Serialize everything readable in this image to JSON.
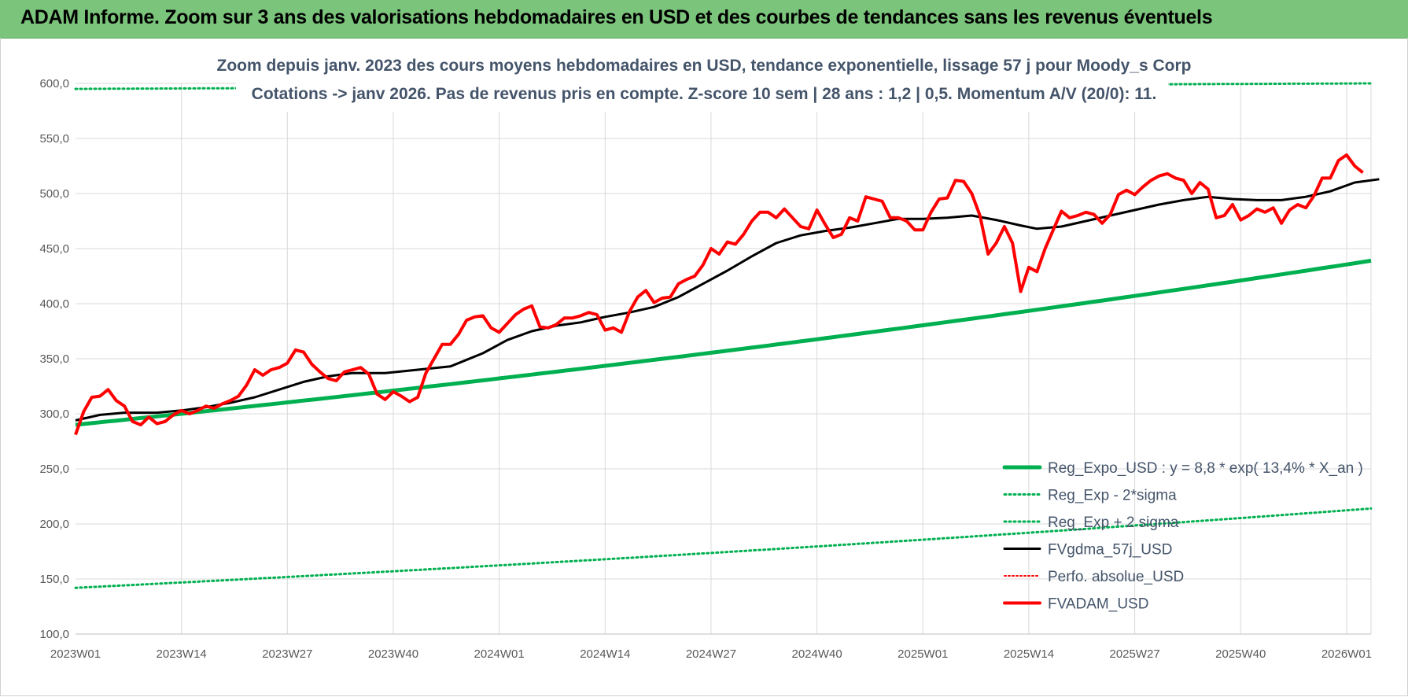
{
  "banner": {
    "title": "ADAM Informe. Zoom sur 3 ans des valorisations hebdomadaires en USD et des courbes de tendances sans les revenus éventuels"
  },
  "colors": {
    "banner": "#7bc47b",
    "reg_expo": "#00b050",
    "sigma": "#00b050",
    "fvgdma": "#000000",
    "perfo": "#ff0000",
    "fvadam": "#ff0000",
    "grid": "#d9d9d9",
    "text": "#44546a"
  },
  "chart_data": {
    "type": "line",
    "title_line1": "Zoom depuis janv. 2023 des cours moyens hebdomadaires en USD, tendance exponentielle, lissage 57 j pour Moody_s Corp",
    "title_line2": "Cotations -> janv 2026. Pas de revenus pris en compte. Z-score 10 sem | 28 ans : 1,2 | 0,5. Momentum A/V (20/0): 11.",
    "xlabel": "",
    "ylabel": "",
    "ylim": [
      100,
      600
    ],
    "yticks": [
      "100,0",
      "150,0",
      "200,0",
      "250,0",
      "300,0",
      "350,0",
      "400,0",
      "450,0",
      "500,0",
      "550,0",
      "600,0"
    ],
    "x_count": 160,
    "x_tick_labels": [
      "2023W01",
      "2023W14",
      "2023W27",
      "2023W40",
      "2024W01",
      "2024W14",
      "2024W27",
      "2024W40",
      "2025W01",
      "2025W14",
      "2025W27",
      "2025W40",
      "2026W01"
    ],
    "x_tick_index": [
      0,
      13,
      26,
      39,
      52,
      65,
      78,
      91,
      104,
      117,
      130,
      143,
      156
    ],
    "grid": true,
    "legend_position": "bottom-right",
    "series": [
      {
        "name": "Reg_Expo_USD : y = 8,8 * exp( 13,4% *  X_an )",
        "style": "solid-thick",
        "color": "#00b050",
        "start": 290,
        "end": 439
      },
      {
        "name": "Reg_Exp - 2*sigma",
        "style": "dotted",
        "color": "#00b050",
        "start": 142,
        "end": 214
      },
      {
        "name": "Reg_Exp + 2 sigma",
        "style": "dotted",
        "color": "#00b050",
        "start": 595,
        "end": 600,
        "note": "clipped at top of axis"
      },
      {
        "name": "FVgdma_57j_USD",
        "style": "solid",
        "color": "#000000",
        "points": [
          [
            0,
            294
          ],
          [
            3,
            299
          ],
          [
            6,
            301
          ],
          [
            10,
            301
          ],
          [
            13,
            303
          ],
          [
            16,
            306
          ],
          [
            19,
            310
          ],
          [
            22,
            315
          ],
          [
            25,
            322
          ],
          [
            28,
            329
          ],
          [
            31,
            334
          ],
          [
            34,
            337
          ],
          [
            38,
            337
          ],
          [
            42,
            340
          ],
          [
            46,
            343
          ],
          [
            50,
            355
          ],
          [
            53,
            367
          ],
          [
            56,
            375
          ],
          [
            59,
            380
          ],
          [
            62,
            383
          ],
          [
            65,
            388
          ],
          [
            68,
            392
          ],
          [
            71,
            397
          ],
          [
            74,
            406
          ],
          [
            77,
            418
          ],
          [
            80,
            430
          ],
          [
            83,
            443
          ],
          [
            86,
            455
          ],
          [
            89,
            462
          ],
          [
            92,
            466
          ],
          [
            95,
            469
          ],
          [
            98,
            473
          ],
          [
            101,
            477
          ],
          [
            104,
            477
          ],
          [
            107,
            478
          ],
          [
            110,
            480
          ],
          [
            113,
            476
          ],
          [
            116,
            471
          ],
          [
            118,
            468
          ],
          [
            121,
            470
          ],
          [
            124,
            475
          ],
          [
            127,
            480
          ],
          [
            130,
            485
          ],
          [
            133,
            490
          ],
          [
            136,
            494
          ],
          [
            139,
            497
          ],
          [
            142,
            495
          ],
          [
            145,
            494
          ],
          [
            148,
            494
          ],
          [
            151,
            497
          ],
          [
            154,
            502
          ],
          [
            157,
            510
          ],
          [
            160,
            513
          ]
        ]
      },
      {
        "name": "Perfo. absolue_USD",
        "style": "dotted",
        "color": "#ff0000",
        "points": []
      },
      {
        "name": "FVADAM_USD",
        "style": "solid-thick",
        "color": "#ff0000",
        "points": [
          [
            0,
            281
          ],
          [
            1,
            302
          ],
          [
            2,
            315
          ],
          [
            3,
            316
          ],
          [
            4,
            322
          ],
          [
            5,
            312
          ],
          [
            6,
            307
          ],
          [
            7,
            293
          ],
          [
            8,
            290
          ],
          [
            9,
            297
          ],
          [
            10,
            291
          ],
          [
            11,
            293
          ],
          [
            12,
            299
          ],
          [
            13,
            303
          ],
          [
            14,
            300
          ],
          [
            15,
            303
          ],
          [
            16,
            307
          ],
          [
            17,
            305
          ],
          [
            18,
            309
          ],
          [
            19,
            312
          ],
          [
            20,
            316
          ],
          [
            21,
            326
          ],
          [
            22,
            340
          ],
          [
            23,
            335
          ],
          [
            24,
            340
          ],
          [
            25,
            342
          ],
          [
            26,
            346
          ],
          [
            27,
            358
          ],
          [
            28,
            356
          ],
          [
            29,
            345
          ],
          [
            30,
            338
          ],
          [
            31,
            332
          ],
          [
            32,
            330
          ],
          [
            33,
            338
          ],
          [
            34,
            340
          ],
          [
            35,
            342
          ],
          [
            36,
            336
          ],
          [
            37,
            318
          ],
          [
            38,
            313
          ],
          [
            39,
            320
          ],
          [
            40,
            316
          ],
          [
            41,
            311
          ],
          [
            42,
            315
          ],
          [
            43,
            337
          ],
          [
            44,
            350
          ],
          [
            45,
            363
          ],
          [
            46,
            363
          ],
          [
            47,
            372
          ],
          [
            48,
            385
          ],
          [
            49,
            388
          ],
          [
            50,
            389
          ],
          [
            51,
            378
          ],
          [
            52,
            374
          ],
          [
            53,
            382
          ],
          [
            54,
            390
          ],
          [
            55,
            395
          ],
          [
            56,
            398
          ],
          [
            57,
            379
          ],
          [
            58,
            378
          ],
          [
            59,
            381
          ],
          [
            60,
            387
          ],
          [
            61,
            387
          ],
          [
            62,
            389
          ],
          [
            63,
            392
          ],
          [
            64,
            390
          ],
          [
            65,
            376
          ],
          [
            66,
            378
          ],
          [
            67,
            374
          ],
          [
            68,
            393
          ],
          [
            69,
            406
          ],
          [
            70,
            412
          ],
          [
            71,
            401
          ],
          [
            72,
            405
          ],
          [
            73,
            406
          ],
          [
            74,
            418
          ],
          [
            75,
            422
          ],
          [
            76,
            425
          ],
          [
            77,
            435
          ],
          [
            78,
            450
          ],
          [
            79,
            445
          ],
          [
            80,
            456
          ],
          [
            81,
            454
          ],
          [
            82,
            463
          ],
          [
            83,
            475
          ],
          [
            84,
            483
          ],
          [
            85,
            483
          ],
          [
            86,
            478
          ],
          [
            87,
            486
          ],
          [
            88,
            478
          ],
          [
            89,
            470
          ],
          [
            90,
            468
          ],
          [
            91,
            485
          ],
          [
            92,
            472
          ],
          [
            93,
            460
          ],
          [
            94,
            463
          ],
          [
            95,
            478
          ],
          [
            96,
            475
          ],
          [
            97,
            497
          ],
          [
            98,
            495
          ],
          [
            99,
            493
          ],
          [
            100,
            478
          ],
          [
            101,
            478
          ],
          [
            102,
            475
          ],
          [
            103,
            467
          ],
          [
            104,
            467
          ],
          [
            105,
            483
          ],
          [
            106,
            495
          ],
          [
            107,
            496
          ],
          [
            108,
            512
          ],
          [
            109,
            511
          ],
          [
            110,
            500
          ],
          [
            111,
            480
          ],
          [
            112,
            445
          ],
          [
            113,
            455
          ],
          [
            114,
            470
          ],
          [
            115,
            455
          ],
          [
            116,
            411
          ],
          [
            117,
            433
          ],
          [
            118,
            429
          ],
          [
            119,
            450
          ],
          [
            120,
            467
          ],
          [
            121,
            484
          ],
          [
            122,
            478
          ],
          [
            123,
            480
          ],
          [
            124,
            483
          ],
          [
            125,
            481
          ],
          [
            126,
            473
          ],
          [
            127,
            481
          ],
          [
            128,
            499
          ],
          [
            129,
            503
          ],
          [
            130,
            499
          ],
          [
            131,
            506
          ],
          [
            132,
            512
          ],
          [
            133,
            516
          ],
          [
            134,
            518
          ],
          [
            135,
            514
          ],
          [
            136,
            512
          ],
          [
            137,
            500
          ],
          [
            138,
            510
          ],
          [
            139,
            504
          ],
          [
            140,
            478
          ],
          [
            141,
            480
          ],
          [
            142,
            490
          ],
          [
            143,
            476
          ],
          [
            144,
            480
          ],
          [
            145,
            486
          ],
          [
            146,
            483
          ],
          [
            147,
            487
          ],
          [
            148,
            473
          ],
          [
            149,
            485
          ],
          [
            150,
            490
          ],
          [
            151,
            487
          ],
          [
            152,
            498
          ],
          [
            153,
            514
          ],
          [
            154,
            514
          ],
          [
            155,
            530
          ],
          [
            156,
            535
          ],
          [
            157,
            525
          ],
          [
            158,
            519
          ]
        ]
      }
    ]
  }
}
